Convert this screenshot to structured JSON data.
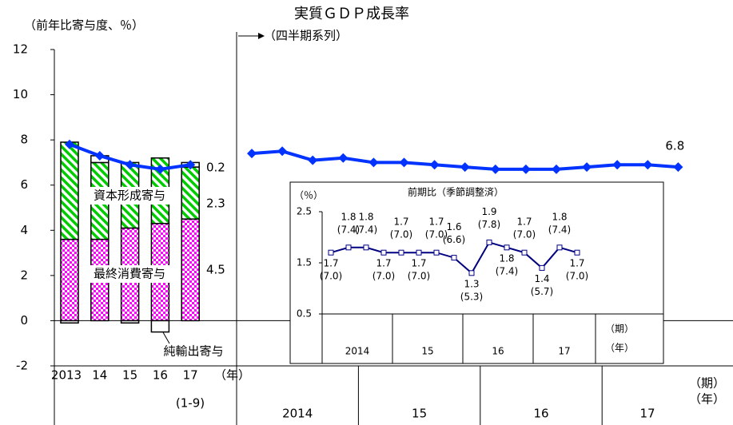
{
  "chart_data": [
    {
      "type": "stacked-bar",
      "ylabel": "（前年比寄与度、％）",
      "categories": [
        "2013",
        "14",
        "15",
        "16",
        "17"
      ],
      "note": "(1-9)",
      "xlabel": "（年）",
      "ylim": [
        -2,
        12
      ],
      "yticks": [
        -2,
        0,
        2,
        4,
        6,
        8,
        10,
        12
      ],
      "series": [
        {
          "name": "最終消費寄与",
          "color": "#ff00ff",
          "values": [
            3.6,
            3.6,
            4.1,
            4.3,
            4.5
          ]
        },
        {
          "name": "資本形成寄与",
          "color": "#00cc00",
          "values": [
            4.3,
            3.4,
            2.9,
            2.9,
            2.3
          ]
        },
        {
          "name": "純輸出寄与",
          "color": "#ffffff",
          "values": [
            -0.1,
            0.3,
            -0.1,
            -0.5,
            0.2
          ]
        }
      ],
      "line_values": [
        7.8,
        7.3,
        6.9,
        6.7,
        6.9
      ],
      "line_color": "#0033ff"
    },
    {
      "type": "line",
      "title": "実質ＧＤＰ成長率",
      "subtitle": "（四半期系列）",
      "categories": [
        null,
        null,
        null,
        null,
        null,
        null,
        null,
        null,
        null,
        null,
        null,
        null,
        null,
        null,
        null
      ],
      "groups": [
        "2014",
        "15",
        "16",
        "17"
      ],
      "xlabel": "（期）",
      "xlabel2": "（年）",
      "ylim": [
        -2,
        12
      ],
      "color": "#0033ff",
      "values": [
        7.4,
        7.5,
        7.1,
        7.2,
        7.0,
        7.0,
        6.9,
        6.8,
        6.7,
        6.7,
        6.7,
        6.8,
        6.9,
        6.9,
        6.8
      ]
    },
    {
      "type": "line",
      "title": "前期比（季節調整済）",
      "ylabel": "（％）",
      "categories": [
        null,
        null,
        null,
        null,
        null,
        null,
        null,
        null,
        null,
        null,
        null,
        null,
        null,
        null,
        null
      ],
      "groups": [
        "2014",
        "15",
        "16",
        "17"
      ],
      "xlabel": "（期）",
      "xlabel2": "（年）",
      "ylim": [
        0.5,
        2.5
      ],
      "yticks": [
        0.5,
        1.5,
        2.5
      ],
      "color": "#000080",
      "values": [
        1.7,
        1.8,
        1.8,
        1.7,
        1.7,
        1.7,
        1.7,
        1.6,
        1.3,
        1.9,
        1.8,
        1.7,
        1.4,
        1.8,
        1.7
      ],
      "annualized_labels": [
        "(7.0)",
        "(7.4)",
        "(7.4)",
        "(7.0)",
        "(7.0)",
        "(7.0)",
        "(7.0)",
        "(6.6)",
        "(5.3)",
        "(7.8)",
        "(7.4)",
        "(7.0)",
        "(5.7)",
        "(7.4)",
        "(7.0)"
      ]
    }
  ]
}
